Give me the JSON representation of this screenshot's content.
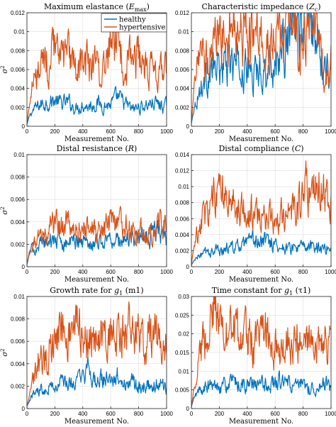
{
  "colors": {
    "healthy": "#0072BD",
    "hypertensive": "#D95319",
    "grid": "#dcdcdc"
  },
  "chart_data": [
    {
      "type": "line",
      "title": "Maximum elastance (E_max)",
      "title_main": "Maximum elastance (",
      "title_sym": "E",
      "title_sub": "max",
      "title_end": ")",
      "xlabel": "Measurement No.",
      "ylabel": "σ2",
      "xlim": [
        0,
        1000
      ],
      "ylim": [
        0,
        0.012
      ],
      "xticks": [
        0,
        200,
        400,
        600,
        800,
        1000
      ],
      "yticks": [
        0,
        0.002,
        0.004,
        0.006,
        0.008,
        0.01,
        0.012
      ],
      "ytick_labels": [
        "0",
        "0.002",
        "0.004",
        "0.006",
        "0.008",
        "0.01",
        "0.012"
      ],
      "legend": {
        "position": "top-left",
        "entries": [
          "healthy",
          "hypertensive"
        ]
      },
      "series": [
        {
          "name": "healthy",
          "x": [
            0,
            20,
            50,
            100,
            150,
            200,
            250,
            300,
            350,
            400,
            450,
            500,
            550,
            600,
            650,
            700,
            750,
            800,
            850,
            900,
            950,
            1000
          ],
          "values": [
            0.0002,
            0.0012,
            0.0018,
            0.0023,
            0.0026,
            0.0027,
            0.0024,
            0.0025,
            0.0019,
            0.0023,
            0.0021,
            0.0025,
            0.0022,
            0.0023,
            0.003,
            0.0024,
            0.0018,
            0.002,
            0.0022,
            0.0025,
            0.0023,
            0.0021
          ]
        },
        {
          "name": "hypertensive",
          "x": [
            0,
            20,
            50,
            100,
            150,
            200,
            250,
            300,
            350,
            400,
            450,
            500,
            550,
            600,
            650,
            700,
            750,
            800,
            850,
            900,
            950,
            1000
          ],
          "values": [
            0.0003,
            0.0025,
            0.0045,
            0.006,
            0.0068,
            0.0085,
            0.0065,
            0.0072,
            0.0058,
            0.0068,
            0.0063,
            0.0066,
            0.0061,
            0.0083,
            0.0088,
            0.0071,
            0.0063,
            0.0074,
            0.0066,
            0.0057,
            0.0055,
            0.0057
          ]
        }
      ]
    },
    {
      "type": "line",
      "title": "Characteristic impedance (Z_c)",
      "title_main": "Characteristic impedance (",
      "title_sym": "Z",
      "title_sub": "c",
      "title_end": ")",
      "xlabel": "Measurement No.",
      "ylabel": "",
      "xlim": [
        0,
        1000
      ],
      "ylim": [
        0,
        0.012
      ],
      "xticks": [
        0,
        200,
        400,
        600,
        800,
        1000
      ],
      "yticks": [
        0,
        0.002,
        0.004,
        0.006,
        0.008,
        0.01,
        0.012
      ],
      "ytick_labels": [
        "0",
        "0.002",
        "0.004",
        "0.006",
        "0.008",
        "0.01",
        "0.012"
      ],
      "series": [
        {
          "name": "healthy",
          "x": [
            0,
            20,
            50,
            100,
            150,
            200,
            250,
            300,
            350,
            400,
            450,
            500,
            550,
            600,
            650,
            700,
            750,
            800,
            850,
            900,
            950,
            1000
          ],
          "values": [
            0.0003,
            0.002,
            0.0035,
            0.005,
            0.0058,
            0.0062,
            0.0065,
            0.0068,
            0.0058,
            0.0062,
            0.0055,
            0.006,
            0.0063,
            0.0068,
            0.0076,
            0.0092,
            0.0103,
            0.0105,
            0.0108,
            0.0095,
            0.0068,
            0.0062
          ]
        },
        {
          "name": "hypertensive",
          "x": [
            0,
            20,
            50,
            100,
            150,
            200,
            250,
            300,
            350,
            400,
            450,
            500,
            550,
            600,
            650,
            700,
            750,
            800,
            850,
            900,
            950,
            1000
          ],
          "values": [
            0.0003,
            0.004,
            0.0065,
            0.0072,
            0.0085,
            0.0095,
            0.0102,
            0.0118,
            0.0098,
            0.0105,
            0.0093,
            0.0085,
            0.0081,
            0.0095,
            0.0086,
            0.0102,
            0.0096,
            0.0092,
            0.01,
            0.0083,
            0.0055,
            0.0068
          ]
        }
      ]
    },
    {
      "type": "line",
      "title": "Distal resistance (R)",
      "title_main": "Distal resistance (",
      "title_sym": "R",
      "title_sub": "",
      "title_end": ")",
      "xlabel": "Measurement No.",
      "ylabel": "σ2",
      "xlim": [
        0,
        1000
      ],
      "ylim": [
        0,
        0.01
      ],
      "xticks": [
        0,
        200,
        400,
        600,
        800,
        1000
      ],
      "yticks": [
        0,
        0.002,
        0.004,
        0.006,
        0.008,
        0.01
      ],
      "ytick_labels": [
        "0",
        "0.002",
        "0.004",
        "0.006",
        "0.008",
        "0.01"
      ],
      "series": [
        {
          "name": "healthy",
          "x": [
            0,
            20,
            50,
            100,
            150,
            200,
            250,
            300,
            350,
            400,
            450,
            500,
            550,
            600,
            650,
            700,
            750,
            800,
            850,
            900,
            950,
            1000
          ],
          "values": [
            0.0002,
            0.0012,
            0.0018,
            0.0021,
            0.0022,
            0.0024,
            0.0023,
            0.0021,
            0.0024,
            0.0022,
            0.0021,
            0.0024,
            0.0022,
            0.0025,
            0.0023,
            0.0024,
            0.0026,
            0.0025,
            0.0028,
            0.003,
            0.0033,
            0.0023
          ]
        },
        {
          "name": "hypertensive",
          "x": [
            0,
            20,
            50,
            100,
            150,
            200,
            250,
            300,
            350,
            400,
            450,
            500,
            550,
            600,
            650,
            700,
            750,
            800,
            850,
            900,
            950,
            1000
          ],
          "values": [
            0.0003,
            0.0015,
            0.0021,
            0.0026,
            0.0033,
            0.0043,
            0.0036,
            0.0038,
            0.0032,
            0.0035,
            0.0032,
            0.0034,
            0.0031,
            0.0041,
            0.0035,
            0.004,
            0.0033,
            0.0031,
            0.0029,
            0.0028,
            0.004,
            0.0036
          ]
        }
      ]
    },
    {
      "type": "line",
      "title": "Distal compliance (C)",
      "title_main": "Distal compliance (",
      "title_sym": "C",
      "title_sub": "",
      "title_end": ")",
      "xlabel": "Measurement No.",
      "ylabel": "",
      "xlim": [
        0,
        1000
      ],
      "ylim": [
        0,
        0.014
      ],
      "xticks": [
        0,
        200,
        400,
        600,
        800,
        1000
      ],
      "yticks": [
        0,
        0.002,
        0.004,
        0.006,
        0.008,
        0.01,
        0.012,
        0.014
      ],
      "ytick_labels": [
        "0",
        "0.002",
        "0.004",
        "0.006",
        "0.008",
        "0.01",
        "0.012",
        "0.014"
      ],
      "series": [
        {
          "name": "healthy",
          "x": [
            0,
            20,
            50,
            100,
            150,
            200,
            250,
            300,
            350,
            400,
            450,
            500,
            550,
            600,
            650,
            700,
            750,
            800,
            850,
            900,
            950,
            1000
          ],
          "values": [
            0.0002,
            0.0008,
            0.0013,
            0.0017,
            0.0019,
            0.0021,
            0.0023,
            0.0025,
            0.0024,
            0.0028,
            0.0032,
            0.003,
            0.0034,
            0.0028,
            0.0024,
            0.0022,
            0.0025,
            0.0023,
            0.0024,
            0.0026,
            0.0023,
            0.0026
          ]
        },
        {
          "name": "hypertensive",
          "x": [
            0,
            20,
            50,
            100,
            150,
            200,
            250,
            300,
            350,
            400,
            450,
            500,
            550,
            600,
            650,
            700,
            750,
            800,
            850,
            900,
            950,
            1000
          ],
          "values": [
            0.0003,
            0.0028,
            0.0048,
            0.0062,
            0.0085,
            0.0095,
            0.0082,
            0.0075,
            0.0068,
            0.0072,
            0.0065,
            0.0058,
            0.0063,
            0.006,
            0.0072,
            0.0065,
            0.0075,
            0.0085,
            0.0115,
            0.0125,
            0.0085,
            0.0075
          ]
        }
      ]
    },
    {
      "type": "line",
      "title": "Growth rate for g1 (m1)",
      "title_main": "Growth rate for ",
      "title_sym": "g",
      "title_sub": "1",
      "title_end": " (m1)",
      "xlabel": "Measurement No.",
      "ylabel": "σ2",
      "xlim": [
        0,
        1000
      ],
      "ylim": [
        0,
        0.01
      ],
      "xticks": [
        0,
        200,
        400,
        600,
        800,
        1000
      ],
      "yticks": [
        0,
        0.002,
        0.004,
        0.006,
        0.008,
        0.01
      ],
      "ytick_labels": [
        "0",
        "0.002",
        "0.004",
        "0.006",
        "0.008",
        "0.01"
      ],
      "series": [
        {
          "name": "healthy",
          "x": [
            0,
            20,
            50,
            100,
            150,
            200,
            250,
            300,
            350,
            400,
            450,
            500,
            550,
            600,
            650,
            700,
            750,
            800,
            850,
            900,
            950,
            1000
          ],
          "values": [
            0.0002,
            0.0008,
            0.0014,
            0.0018,
            0.0022,
            0.0019,
            0.0024,
            0.0021,
            0.0023,
            0.0026,
            0.0035,
            0.0022,
            0.0027,
            0.0021,
            0.0029,
            0.0022,
            0.0024,
            0.002,
            0.0022,
            0.0019,
            0.0024,
            0.0018
          ]
        },
        {
          "name": "hypertensive",
          "x": [
            0,
            20,
            50,
            100,
            150,
            200,
            250,
            300,
            350,
            400,
            450,
            500,
            550,
            600,
            650,
            700,
            750,
            800,
            850,
            900,
            950,
            1000
          ],
          "values": [
            0.0002,
            0.0012,
            0.0035,
            0.0048,
            0.0055,
            0.0062,
            0.0075,
            0.0068,
            0.0072,
            0.0063,
            0.0066,
            0.0058,
            0.0065,
            0.0069,
            0.0064,
            0.007,
            0.0066,
            0.0062,
            0.0066,
            0.0058,
            0.0063,
            0.0055
          ]
        }
      ]
    },
    {
      "type": "line",
      "title": "Time constant for g1 (τ1)",
      "title_main": "Time constant for ",
      "title_sym": "g",
      "title_sub": "1",
      "title_end": " (τ1)",
      "xlabel": "Measurement No.",
      "ylabel": "",
      "xlim": [
        0,
        1000
      ],
      "ylim": [
        0,
        0.03
      ],
      "xticks": [
        0,
        200,
        400,
        600,
        800,
        1000
      ],
      "yticks": [
        0,
        0.005,
        0.01,
        0.015,
        0.02,
        0.025,
        0.03
      ],
      "ytick_labels": [
        "0",
        "0.005",
        "0.01",
        "0.015",
        "0.02",
        "0.025",
        "0.03"
      ],
      "series": [
        {
          "name": "healthy",
          "x": [
            0,
            20,
            50,
            100,
            150,
            200,
            250,
            300,
            350,
            400,
            450,
            500,
            550,
            600,
            650,
            700,
            750,
            800,
            850,
            900,
            950,
            1000
          ],
          "values": [
            0.0005,
            0.003,
            0.0045,
            0.0055,
            0.006,
            0.0065,
            0.0062,
            0.0068,
            0.0065,
            0.0063,
            0.006,
            0.0065,
            0.0062,
            0.0068,
            0.0072,
            0.0065,
            0.0058,
            0.006,
            0.0055,
            0.0058,
            0.0065,
            0.0055
          ]
        },
        {
          "name": "hypertensive",
          "x": [
            0,
            20,
            50,
            100,
            150,
            200,
            250,
            300,
            350,
            400,
            450,
            500,
            550,
            600,
            650,
            700,
            750,
            800,
            850,
            900,
            950,
            1000
          ],
          "values": [
            0.0005,
            0.006,
            0.012,
            0.02,
            0.027,
            0.023,
            0.019,
            0.021,
            0.018,
            0.02,
            0.017,
            0.019,
            0.021,
            0.018,
            0.016,
            0.019,
            0.017,
            0.018,
            0.016,
            0.019,
            0.017,
            0.016
          ]
        }
      ]
    }
  ]
}
